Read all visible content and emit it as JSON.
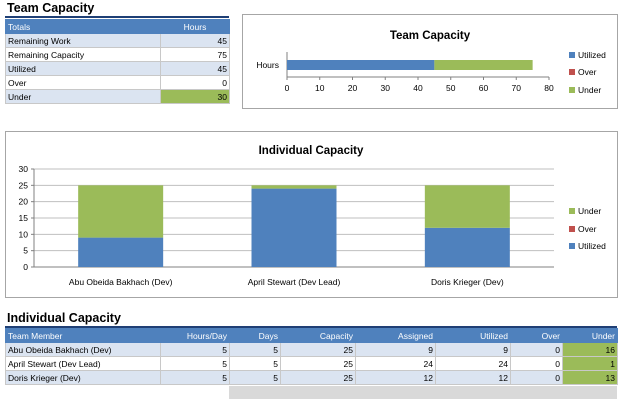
{
  "team_section": {
    "title": "Team Capacity"
  },
  "totals_table": {
    "headers": [
      "Totals",
      "Hours"
    ],
    "rows": [
      {
        "label": "Remaining Work",
        "value": "45"
      },
      {
        "label": "Remaining Capacity",
        "value": "75"
      },
      {
        "label": "Utilized",
        "value": "45"
      },
      {
        "label": "Over",
        "value": "0"
      },
      {
        "label": "Under",
        "value": "30"
      }
    ]
  },
  "individual_section": {
    "title": "Individual Capacity"
  },
  "members_table": {
    "headers": [
      "Team Member",
      "Hours/Day",
      "Days",
      "Capacity",
      "Assigned",
      "Utilized",
      "Over",
      "Under"
    ],
    "rows": [
      [
        "Abu Obeida Bakhach (Dev)",
        "5",
        "5",
        "25",
        "9",
        "9",
        "0",
        "16"
      ],
      [
        "April Stewart (Dev Lead)",
        "5",
        "5",
        "25",
        "24",
        "24",
        "0",
        "1"
      ],
      [
        "Doris Krieger (Dev)",
        "5",
        "5",
        "25",
        "12",
        "12",
        "0",
        "13"
      ]
    ]
  },
  "colors": {
    "header_blue": "#4f81bd",
    "utilized": "#4f81bd",
    "over": "#c0504d",
    "under": "#9bbb59",
    "row_band": "#dbe4f1"
  },
  "chart_data": [
    {
      "type": "bar",
      "orientation": "horizontal",
      "stacked": true,
      "title": "Team Capacity",
      "categories": [
        "Hours"
      ],
      "series": [
        {
          "name": "Utilized",
          "values": [
            45
          ],
          "color": "#4f81bd"
        },
        {
          "name": "Over",
          "values": [
            0
          ],
          "color": "#c0504d"
        },
        {
          "name": "Under",
          "values": [
            30
          ],
          "color": "#9bbb59"
        }
      ],
      "xlim": [
        0,
        80
      ],
      "xticks": [
        0,
        10,
        20,
        30,
        40,
        50,
        60,
        70,
        80
      ],
      "grid": false,
      "legend": "right"
    },
    {
      "type": "bar",
      "stacked": true,
      "title": "Individual Capacity",
      "categories": [
        "Abu Obeida Bakhach (Dev)",
        "April Stewart (Dev Lead)",
        "Doris Krieger (Dev)"
      ],
      "series": [
        {
          "name": "Utilized",
          "values": [
            9,
            24,
            12
          ],
          "color": "#4f81bd"
        },
        {
          "name": "Over",
          "values": [
            0,
            0,
            0
          ],
          "color": "#c0504d"
        },
        {
          "name": "Under",
          "values": [
            16,
            1,
            13
          ],
          "color": "#9bbb59"
        }
      ],
      "ylim": [
        0,
        30
      ],
      "yticks": [
        0,
        5,
        10,
        15,
        20,
        25,
        30
      ],
      "grid": true,
      "legend": "right"
    }
  ]
}
